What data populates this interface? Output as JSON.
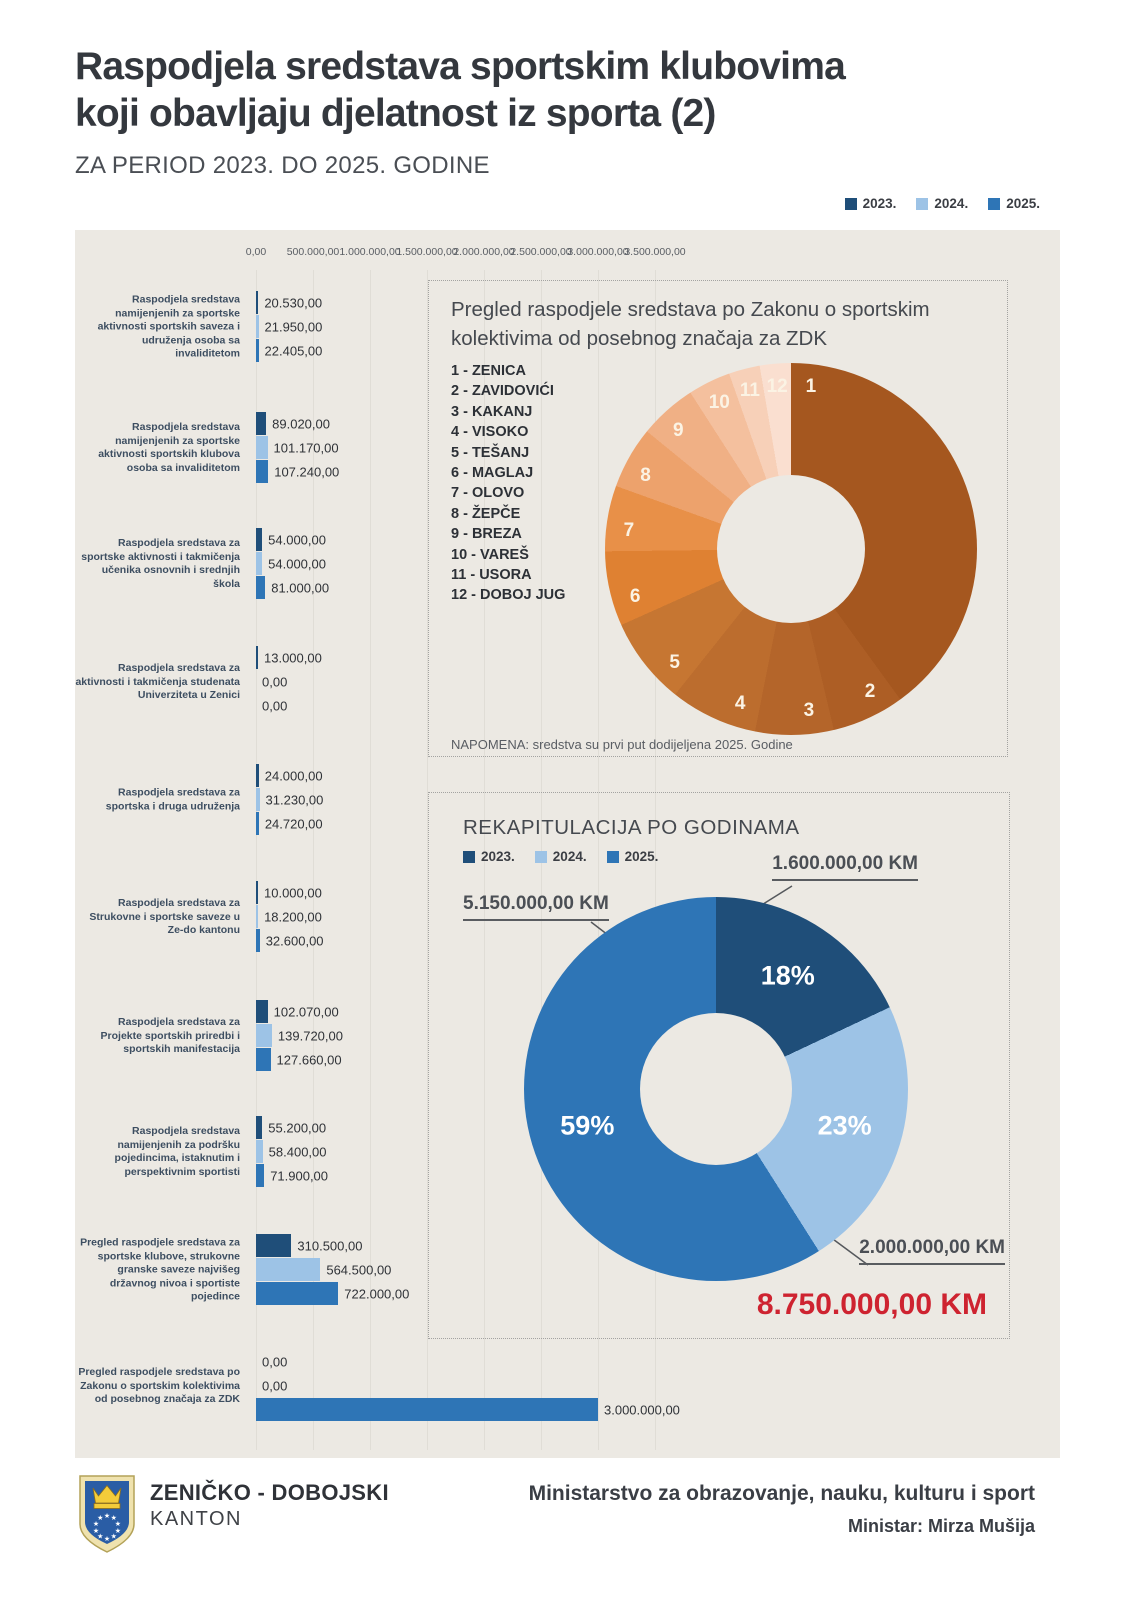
{
  "page": {
    "title_line1": "Raspodjela sredstava sportskim klubovima",
    "title_line2": "koji obavljaju djelatnost iz sporta (2)",
    "subtitle": "ZA PERIOD 2023. DO 2025. GODINE"
  },
  "colors": {
    "year2023": "#1f4e79",
    "year2024": "#9dc3e6",
    "year2025": "#2e75b6",
    "panel_bg": "#ece9e3",
    "total_red": "#ce2330"
  },
  "legend_years": [
    {
      "label": "2023.",
      "color": "#1f4e79"
    },
    {
      "label": "2024.",
      "color": "#9dc3e6"
    },
    {
      "label": "2025.",
      "color": "#2e75b6"
    }
  ],
  "chart_data": [
    {
      "type": "bar",
      "orientation": "horizontal",
      "x_max": 3500000,
      "x_axis_ticks": [
        "0,00",
        "500.000,00",
        "1.000.000,00",
        "1.500.000,00",
        "2.000.000,00",
        "2.500.000,00",
        "3.000.000,00",
        "3.500.000,00"
      ],
      "series_names": [
        "2023.",
        "2024.",
        "2025."
      ],
      "categories": [
        {
          "label": "Raspodjela sredstava namijenjenih za sportske aktivnosti sportskih saveza i udruženja osoba sa invaliditetom",
          "values": [
            20530,
            21950,
            22405
          ],
          "value_labels": [
            "20.530,00",
            "21.950,00",
            "22.405,00"
          ]
        },
        {
          "label": "Raspodjela sredstava namijenjenih za sportske aktivnosti sportskih klubova osoba sa invaliditetom",
          "values": [
            89020,
            101170,
            107240
          ],
          "value_labels": [
            "89.020,00",
            "101.170,00",
            "107.240,00"
          ]
        },
        {
          "label": "Raspodjela sredstava za sportske aktivnosti i takmičenja učenika osnovnih i srednjih škola",
          "values": [
            54000,
            54000,
            81000
          ],
          "value_labels": [
            "54.000,00",
            "54.000,00",
            "81.000,00"
          ]
        },
        {
          "label": "Raspodjela sredstava za aktivnosti i takmičenja studenata Univerziteta u Zenici",
          "values": [
            13000,
            0,
            0
          ],
          "value_labels": [
            "13.000,00",
            "0,00",
            "0,00"
          ]
        },
        {
          "label": "Raspodjela sredstava za sportska i druga udruženja",
          "values": [
            24000,
            31230,
            24720
          ],
          "value_labels": [
            "24.000,00",
            "31.230,00",
            "24.720,00"
          ]
        },
        {
          "label": "Raspodjela sredstava za Strukovne i sportske saveze u Ze-do kantonu",
          "values": [
            10000,
            18200,
            32600
          ],
          "value_labels": [
            "10.000,00",
            "18.200,00",
            "32.600,00"
          ]
        },
        {
          "label": "Raspodjela sredstava za Projekte sportskih priredbi i sportskih manifestacija",
          "values": [
            102070,
            139720,
            127660
          ],
          "value_labels": [
            "102.070,00",
            "139.720,00",
            "127.660,00"
          ]
        },
        {
          "label": "Raspodjela sredstava namijenjenih za podršku pojedincima, istaknutim i perspektivnim sportisti",
          "values": [
            55200,
            58400,
            71900
          ],
          "value_labels": [
            "55.200,00",
            "58.400,00",
            "71.900,00"
          ]
        },
        {
          "label": "Pregled raspodjele sredstava za sportske klubove, strukovne granske saveze najvišeg državnog nivoa i sportiste pojedince",
          "values": [
            310500,
            564500,
            722000
          ],
          "value_labels": [
            "310.500,00",
            "564.500,00",
            "722.000,00"
          ]
        },
        {
          "label": "Pregled raspodjele sredstava po Zakonu o sportskim kolektivima od posebnog značaja za ZDK",
          "values": [
            0,
            0,
            3000000
          ],
          "value_labels": [
            "0,00",
            "0,00",
            "3.000.000,00"
          ]
        }
      ]
    },
    {
      "type": "donut",
      "title": "Pregled raspodjele sredstava po Zakonu o sportskim kolektivima od posebnog značaja za ZDK",
      "note": "NAPOMENA: sredstva su prvi put dodijeljena 2025. Godine",
      "segments": [
        {
          "num": "1",
          "name": "ZENICA",
          "legend_label": "1 - ZENICA",
          "percent_est": 40.0,
          "color": "#a5571f"
        },
        {
          "num": "2",
          "name": "ZAVIDOVIĆI",
          "legend_label": "2 - ZAVIDOVIĆI",
          "percent_est": 6.3,
          "color": "#ad5e25"
        },
        {
          "num": "3",
          "name": "KAKANJ",
          "legend_label": "3 - KAKANJ",
          "percent_est": 6.8,
          "color": "#b4652a"
        },
        {
          "num": "4",
          "name": "VISOKO",
          "legend_label": "4 - VISOKO",
          "percent_est": 7.6,
          "color": "#bc6d2e"
        },
        {
          "num": "5",
          "name": "TEŠANJ",
          "legend_label": "5 - TEŠANJ",
          "percent_est": 7.6,
          "color": "#c67632"
        },
        {
          "num": "6",
          "name": "MAGLAJ",
          "legend_label": "6 - MAGLAJ",
          "percent_est": 6.5,
          "color": "#df8132"
        },
        {
          "num": "7",
          "name": "OLOVO",
          "legend_label": "7 - OLOVO",
          "percent_est": 5.7,
          "color": "#e89048"
        },
        {
          "num": "8",
          "name": "ŽEPČE",
          "legend_label": "8 - ŽEPČE",
          "percent_est": 5.4,
          "color": "#eda26c"
        },
        {
          "num": "9",
          "name": "BREZA",
          "legend_label": "9 - BREZA",
          "percent_est": 5.0,
          "color": "#f0b085"
        },
        {
          "num": "10",
          "name": "VAREŠ",
          "legend_label": "10 - VAREŠ",
          "percent_est": 3.7,
          "color": "#f4c09e"
        },
        {
          "num": "11",
          "name": "USORA",
          "legend_label": "11 - USORA",
          "percent_est": 2.7,
          "color": "#f7d0b8"
        },
        {
          "num": "12",
          "name": "DOBOJ JUG",
          "legend_label": "12 - DOBOJ JUG",
          "percent_est": 2.7,
          "color": "#fadfd0"
        }
      ]
    },
    {
      "type": "donut",
      "title": "REKAPITULACIJA PO GODINAMA",
      "legend": [
        "2023.",
        "2024.",
        "2025."
      ],
      "segments": [
        {
          "label": "2023.",
          "percent": 18,
          "percent_label": "18%",
          "amount_label": "1.600.000,00 KM",
          "color": "#1f4e79"
        },
        {
          "label": "2024.",
          "percent": 23,
          "percent_label": "23%",
          "amount_label": "2.000.000,00 KM",
          "color": "#9dc3e6"
        },
        {
          "label": "2025.",
          "percent": 59,
          "percent_label": "59%",
          "amount_label": "5.150.000,00 KM",
          "color": "#2e75b6"
        }
      ],
      "total_label": "8.750.000,00 KM"
    }
  ],
  "footer": {
    "org_line1": "ZENIČKO - DOBOJSKI",
    "org_line2": "KANTON",
    "ministry": "Ministarstvo za obrazovanje, nauku, kulturu i sport",
    "minister": "Ministar: Mirza Mušija"
  }
}
